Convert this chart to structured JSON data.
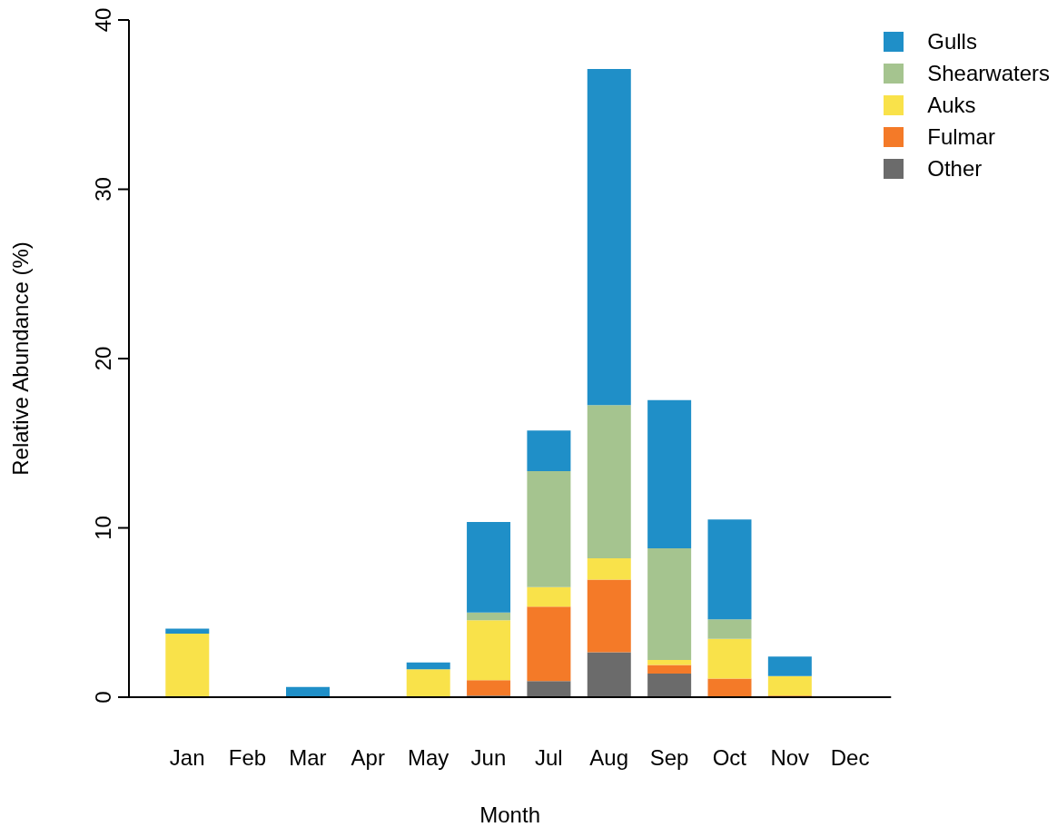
{
  "chart_data": {
    "type": "bar",
    "stacked": true,
    "xlabel": "Month",
    "ylabel": "Relative Abundance (%)",
    "categories": [
      "Jan",
      "Feb",
      "Mar",
      "Apr",
      "May",
      "Jun",
      "Jul",
      "Aug",
      "Sep",
      "Oct",
      "Nov",
      "Dec"
    ],
    "series": [
      {
        "name": "Other",
        "color": "#6b6b6b",
        "values": [
          0,
          0,
          0,
          0,
          0,
          0.1,
          0.95,
          2.65,
          1.4,
          0,
          0,
          0
        ]
      },
      {
        "name": "Fulmar",
        "color": "#f47a28",
        "values": [
          0,
          0,
          0,
          0,
          0,
          0.9,
          4.4,
          4.3,
          0.5,
          1.1,
          0.1,
          0
        ]
      },
      {
        "name": "Auks",
        "color": "#f9e24a",
        "values": [
          3.75,
          0,
          0,
          0,
          1.65,
          3.55,
          1.15,
          1.25,
          0.3,
          2.35,
          1.15,
          0
        ]
      },
      {
        "name": "Shearwaters",
        "color": "#a5c48f",
        "values": [
          0,
          0,
          0,
          0,
          0,
          0.45,
          6.85,
          9.05,
          6.6,
          1.15,
          0,
          0
        ]
      },
      {
        "name": "Gulls",
        "color": "#1f8fc8",
        "values": [
          0.3,
          0,
          0.6,
          0,
          0.4,
          5.35,
          2.4,
          19.85,
          8.75,
          5.9,
          1.15,
          0
        ]
      }
    ],
    "ylim": [
      0,
      40
    ],
    "yticks": [
      0,
      10,
      20,
      30,
      40
    ],
    "grid": false,
    "legend": "top right"
  }
}
